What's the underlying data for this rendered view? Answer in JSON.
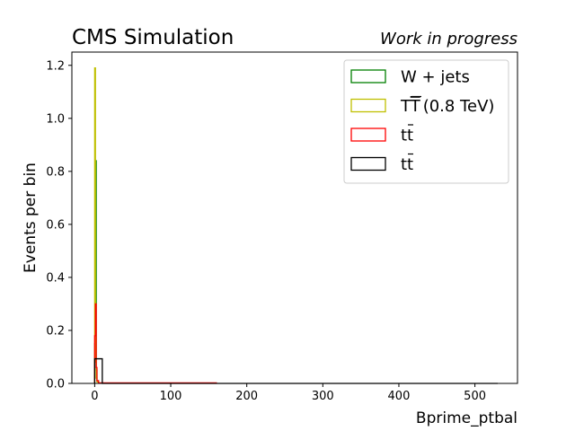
{
  "header": {
    "left": "CMS Simulation",
    "right": "Work in progress"
  },
  "chart_data": {
    "type": "histogram",
    "xlabel": "Bprime_ptbal",
    "ylabel": "Events per bin",
    "xlim": [
      -30,
      556
    ],
    "ylim": [
      0,
      1.25
    ],
    "xticks": [
      "0",
      "100",
      "200",
      "300",
      "400",
      "500"
    ],
    "yticks": [
      "0.0",
      "0.2",
      "0.4",
      "0.6",
      "0.8",
      "1.0",
      "1.2"
    ],
    "legend_position": "top-right",
    "series": [
      {
        "name": "W + jets",
        "label_main": "W + jets",
        "label_sup": "",
        "label_tail": "",
        "color": "#008000",
        "bins": [
          [
            0,
            1,
            0.15
          ],
          [
            1,
            2,
            0.84
          ],
          [
            2,
            3,
            0.05
          ],
          [
            3,
            5,
            0.01
          ]
        ]
      },
      {
        "name": "TT̄ (0.8 TeV)",
        "label_main": "TT",
        "label_sup": "",
        "label_tail": "(0.8 TeV)",
        "color": "#bfbf00",
        "bins": [
          [
            0,
            1,
            1.19
          ],
          [
            1,
            2,
            0.08
          ],
          [
            2,
            3,
            0.02
          ],
          [
            3,
            5,
            0.005
          ]
        ]
      },
      {
        "name": "tt̄",
        "label_main": "tt",
        "label_sup": "",
        "label_tail": "",
        "color": "#ff0000",
        "bins": [
          [
            0,
            1,
            0.18
          ],
          [
            1,
            2,
            0.3
          ],
          [
            2,
            3,
            0.06
          ],
          [
            3,
            5,
            0.01
          ],
          [
            5,
            160,
            0.002
          ]
        ]
      },
      {
        "name": "tt̄",
        "label_main": "tt",
        "label_sup": "",
        "label_tail": "",
        "color": "#000000",
        "bins": [
          [
            0,
            10,
            0.093
          ],
          [
            10,
            530,
            0.0
          ]
        ]
      }
    ]
  }
}
